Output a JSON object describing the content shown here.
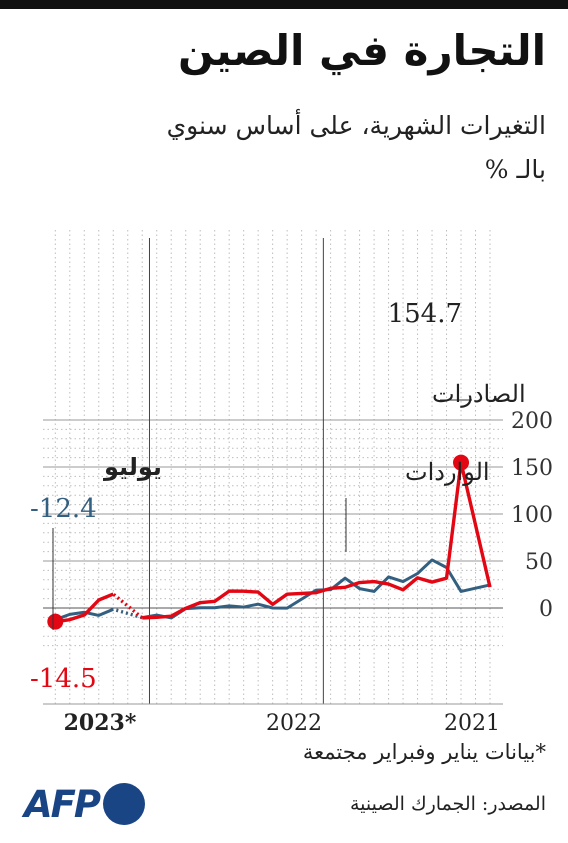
{
  "title": "التجارة في الصين",
  "subtitle_line1": "التغيرات الشهرية، على أساس سنوي",
  "subtitle_line2": "بالـ %",
  "footnote": "*بيانات يناير وفبراير مجتمعة",
  "source": "المصدر: الجمارك الصينية",
  "logo": {
    "text": "AFP",
    "icon": "afp-logo-dot"
  },
  "colors": {
    "exports": "#e30613",
    "imports": "#336080",
    "grid": "#bdbdbd",
    "text": "#222222"
  },
  "chart_data": {
    "type": "line",
    "y_ticks": [
      200,
      150,
      100,
      50,
      0
    ],
    "ylim": [
      -45,
      200
    ],
    "grid": true,
    "x_labels": [
      {
        "label": "2021",
        "start": "2021-01",
        "end": "2021-12"
      },
      {
        "label": "2022",
        "start": "2022-01",
        "end": "2022-12"
      },
      {
        "label": "*2023",
        "start": "2023-01",
        "end": "2023-07"
      }
    ],
    "x": [
      "2021-01",
      "2021-03",
      "2021-04",
      "2021-05",
      "2021-06",
      "2021-07",
      "2021-08",
      "2021-09",
      "2021-10",
      "2021-11",
      "2021-12",
      "2022-01",
      "2022-03",
      "2022-04",
      "2022-05",
      "2022-06",
      "2022-07",
      "2022-08",
      "2022-09",
      "2022-10",
      "2022-11",
      "2022-12",
      "2023-01",
      "2023-03",
      "2023-04",
      "2023-05",
      "2023-06",
      "2023-07"
    ],
    "series": [
      {
        "name": "الصادرات",
        "key": "exports",
        "values": [
          22.2,
          154.7,
          31.7,
          27.6,
          32.1,
          19.3,
          25.5,
          28.1,
          27.1,
          22.0,
          20.9,
          16.3,
          14.7,
          3.9,
          16.9,
          17.9,
          18.0,
          7.1,
          5.7,
          -0.3,
          -8.7,
          -9.9,
          -10.5,
          14.8,
          8.5,
          -7.5,
          -12.4,
          -14.5
        ]
      },
      {
        "name": "الواردات",
        "key": "imports",
        "values": [
          24.5,
          17.6,
          43.1,
          51.1,
          36.7,
          28.1,
          33.1,
          17.6,
          20.6,
          31.7,
          19.5,
          19.0,
          -0.1,
          0.0,
          4.1,
          1.0,
          2.3,
          0.3,
          0.3,
          -0.7,
          -10.6,
          -7.5,
          -10.2,
          -1.4,
          -7.9,
          -4.5,
          -6.8,
          -12.4
        ]
      }
    ],
    "annotations": [
      {
        "text": "154.7",
        "series": "exports",
        "x": "2021-03"
      },
      {
        "text": "الصادرات",
        "series": "exports"
      },
      {
        "text": "الواردات",
        "series": "imports"
      },
      {
        "text": "يوليو",
        "x": "2023-07"
      },
      {
        "text": "-12.4",
        "series": "imports",
        "x": "2023-07"
      },
      {
        "text": "-14.5",
        "series": "exports",
        "x": "2023-07"
      }
    ]
  }
}
